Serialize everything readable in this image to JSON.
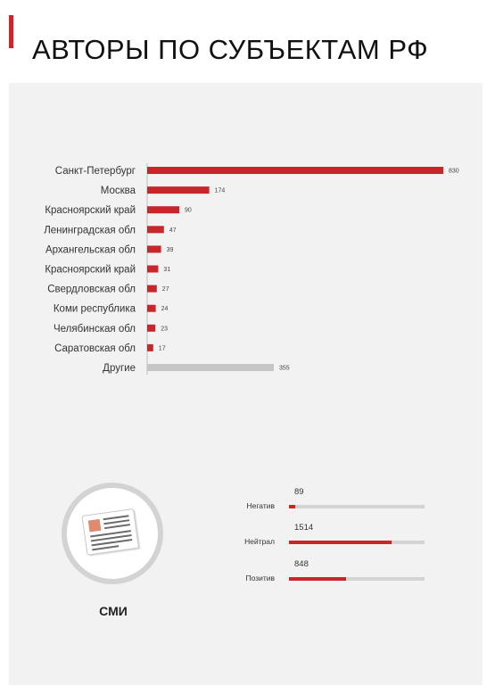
{
  "title": "АВТОРЫ ПО СУБЪЕКТАМ РФ",
  "colors": {
    "accent": "#c9262c",
    "bar_other": "#c6c6c6",
    "panel_bg": "#f2f2f2",
    "track": "#d4d4d4"
  },
  "chart_data": {
    "type": "bar",
    "orientation": "horizontal",
    "title": "",
    "xlabel": "",
    "ylabel": "",
    "categories": [
      "Санкт-Петербург",
      "Москва",
      "Красноярский край",
      "Ленинградская обл",
      "Архангельская обл",
      "Красноярский край",
      "Свердловская обл",
      "Коми республика",
      "Челябинская обл",
      "Саратовская обл",
      "Другие"
    ],
    "values": [
      830,
      174,
      90,
      47,
      39,
      31,
      27,
      24,
      23,
      17,
      355
    ],
    "value_labels": [
      "830",
      "174",
      "90",
      "47",
      "39",
      "31",
      "27",
      "24",
      "23",
      "17",
      "355"
    ],
    "grid": false,
    "xlim": [
      0,
      830
    ]
  },
  "media": {
    "icon": "newspaper-icon",
    "label": "СМИ"
  },
  "sentiment": {
    "max": 2000,
    "rows": [
      {
        "name": "Негатив",
        "value": 89,
        "value_label": "89"
      },
      {
        "name": "Нейтрал",
        "value": 1514,
        "value_label": "1514"
      },
      {
        "name": "Позитив",
        "value": 848,
        "value_label": "848"
      }
    ]
  }
}
